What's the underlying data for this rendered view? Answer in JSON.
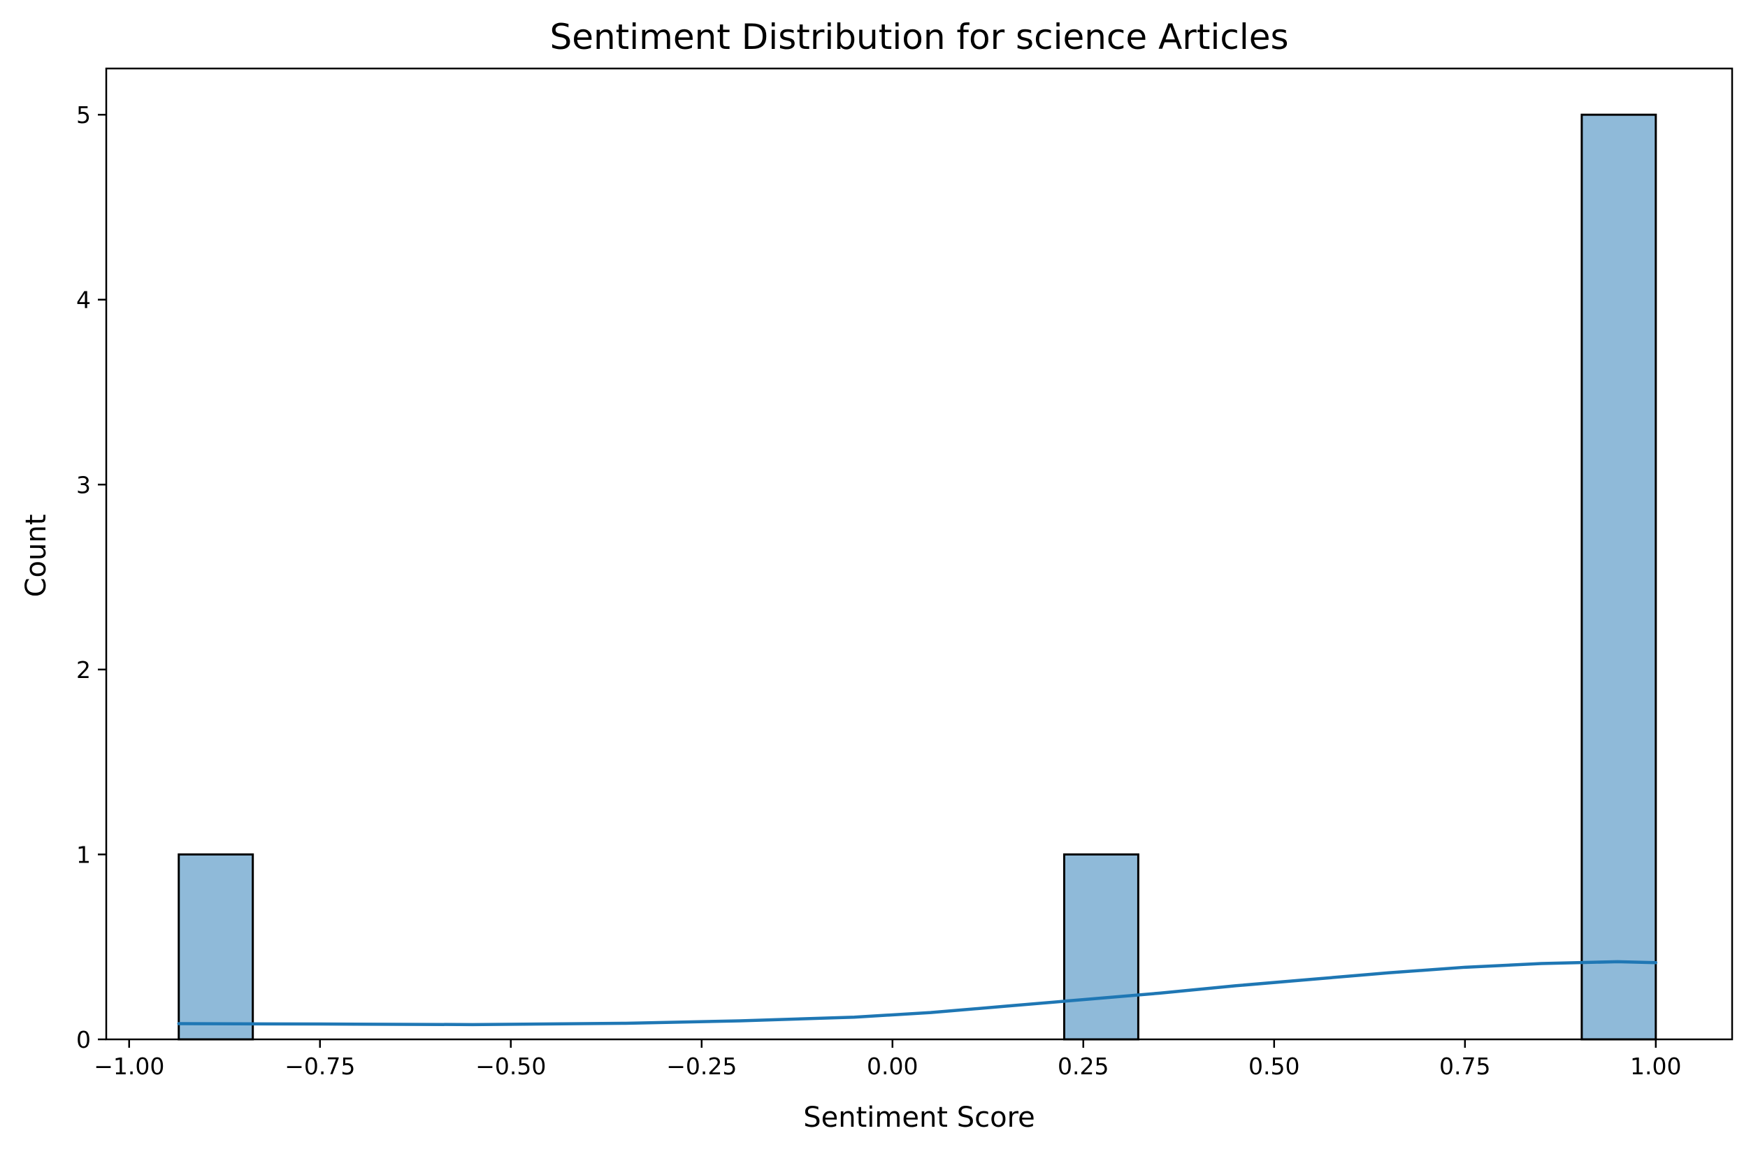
{
  "chart_data": {
    "type": "bar",
    "title": "Sentiment Distribution for science Articles",
    "xlabel": "Sentiment Score",
    "ylabel": "Count",
    "xlim": [
      -1.03,
      1.1
    ],
    "ylim": [
      0,
      5.25
    ],
    "x_ticks": [
      "−1.00",
      "−0.75",
      "−0.50",
      "−0.25",
      "0.00",
      "0.25",
      "0.50",
      "0.75",
      "1.00"
    ],
    "y_ticks": [
      "0",
      "1",
      "2",
      "3",
      "4",
      "5"
    ],
    "grid": false,
    "bins": [
      {
        "x0": -0.935,
        "x1": -0.838,
        "count": 1
      },
      {
        "x0": 0.225,
        "x1": 0.322,
        "count": 1
      },
      {
        "x0": 0.903,
        "x1": 1.0,
        "count": 5
      }
    ],
    "kde": {
      "x": [
        -0.935,
        -0.75,
        -0.55,
        -0.35,
        -0.2,
        -0.05,
        0.05,
        0.15,
        0.25,
        0.35,
        0.45,
        0.55,
        0.65,
        0.75,
        0.85,
        0.95,
        1.0
      ],
      "y": [
        0.085,
        0.083,
        0.08,
        0.087,
        0.1,
        0.12,
        0.145,
        0.18,
        0.215,
        0.25,
        0.29,
        0.325,
        0.36,
        0.39,
        0.41,
        0.42,
        0.415
      ]
    },
    "colors": {
      "bar_fill": "#8fbad9",
      "kde_line": "#1f77b4",
      "edge": "#000000"
    }
  }
}
